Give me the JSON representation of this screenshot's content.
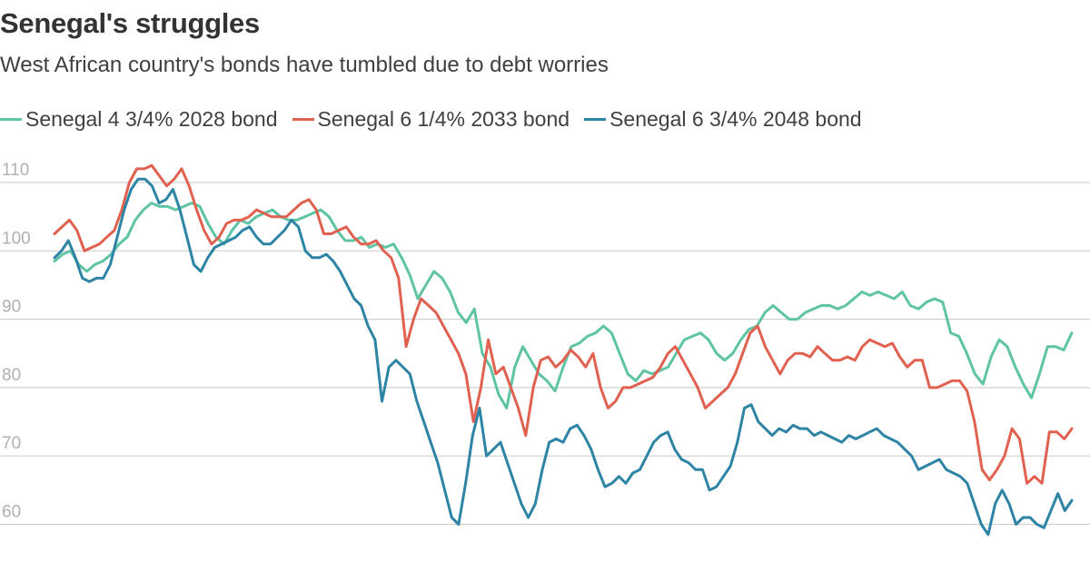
{
  "title": "Senegal's struggles",
  "subtitle": "West African country's bonds have tumbled due to debt worries",
  "chart_data": {
    "type": "line",
    "title": "Senegal's struggles",
    "subtitle": "West African country's bonds have tumbled due to debt worries",
    "xlabel": "",
    "ylabel": "",
    "ylim": [
      50,
      115
    ],
    "yticks": [
      60,
      70,
      80,
      90,
      100,
      110
    ],
    "grid": true,
    "legend_position": "top",
    "series": [
      {
        "name": "Senegal 4 3/4% 2028 bond",
        "color": "#5fc4a3",
        "values": [
          98.5,
          99.5,
          100,
          98,
          97,
          98,
          98.5,
          99.5,
          101,
          102,
          104.5,
          106,
          107,
          106.5,
          106.5,
          106,
          106.5,
          107,
          106.5,
          104,
          102,
          101,
          103,
          104.5,
          104,
          105,
          105.5,
          106,
          105,
          104.5,
          104.5,
          105,
          105.5,
          106,
          105,
          103,
          101.5,
          101.5,
          102,
          100.5,
          101,
          100.5,
          101,
          99,
          96.5,
          93,
          95,
          97,
          96,
          94,
          91,
          89.5,
          91.5,
          85,
          83,
          79,
          77,
          83,
          86,
          84,
          82,
          81,
          79.5,
          83,
          86,
          86.5,
          87.5,
          88,
          89,
          88,
          85,
          82,
          81,
          82.5,
          82,
          82.5,
          83,
          85,
          87,
          87.5,
          88,
          87,
          85,
          84,
          85,
          87,
          88.5,
          89,
          91,
          92,
          91,
          90,
          90,
          91,
          91.5,
          92,
          92,
          91.5,
          92,
          93,
          94,
          93.5,
          94,
          93.5,
          93,
          94,
          92,
          91.5,
          92.5,
          93,
          92.5,
          88,
          87.5,
          85,
          82,
          80.5,
          84.5,
          87,
          86,
          83,
          80.5,
          78.5,
          82,
          86,
          86,
          85.5,
          88
        ]
      },
      {
        "name": "Senegal 6 1/4% 2033 bond",
        "color": "#e06150",
        "values": [
          102.5,
          103.5,
          104.5,
          103,
          100,
          100.5,
          101,
          102,
          103,
          106,
          110,
          112,
          112,
          112.5,
          111,
          109.5,
          110.5,
          112,
          109.5,
          106,
          103,
          101,
          102,
          104,
          104.5,
          104.5,
          105,
          106,
          105.5,
          105,
          105,
          105,
          106,
          107,
          107.5,
          106,
          102.5,
          102.5,
          103,
          103.5,
          102,
          101,
          101,
          101.5,
          100,
          99,
          96,
          86,
          90,
          93,
          92,
          91,
          89,
          87,
          85,
          82,
          75,
          80,
          87,
          82,
          83,
          80,
          77,
          73,
          80,
          84,
          84.5,
          83,
          84,
          85.5,
          84.5,
          83,
          85,
          80,
          77,
          78,
          80,
          80,
          80.5,
          81,
          81.5,
          83,
          85,
          86,
          84,
          82,
          80,
          77,
          78,
          79,
          80,
          82,
          85,
          88,
          89,
          86,
          84,
          82,
          84,
          85,
          85,
          84.5,
          86,
          85,
          84,
          84,
          84.5,
          84,
          86,
          87,
          86.5,
          86,
          86.5,
          84.5,
          83,
          84,
          84,
          80,
          80,
          80.5,
          81,
          81,
          79.5,
          75,
          68,
          66.5,
          68,
          70,
          74,
          72.5,
          66,
          67,
          66,
          73.5,
          73.5,
          72.5,
          74
        ]
      },
      {
        "name": "Senegal 6 3/4% 2048 bond",
        "color": "#2e84a4",
        "values": [
          99,
          100,
          101.5,
          99,
          96,
          95.5,
          96,
          96,
          98,
          102,
          106,
          109,
          110.5,
          110.5,
          109.5,
          107,
          107.5,
          109,
          106,
          102,
          98,
          97,
          99,
          100.5,
          101,
          101.5,
          102,
          103,
          103.5,
          102,
          101,
          101,
          102,
          103,
          104.5,
          103.5,
          100,
          99,
          99,
          99.5,
          98.5,
          97,
          95,
          93,
          92,
          89,
          87,
          78,
          83,
          84,
          83,
          82,
          78,
          75,
          72,
          69,
          65,
          61,
          60,
          66,
          73,
          77,
          70,
          71,
          72,
          69,
          66,
          63,
          61,
          63,
          68,
          72,
          72.5,
          72,
          74,
          74.5,
          73,
          71,
          68,
          65.5,
          66,
          67,
          66,
          67.5,
          68,
          70,
          72,
          73,
          73.5,
          71,
          69.5,
          69,
          68,
          68,
          65,
          65.5,
          67,
          68.5,
          72,
          77,
          77.5,
          75,
          74,
          73,
          74,
          73.5,
          74.5,
          74,
          74,
          73,
          73.5,
          73,
          72.5,
          72,
          73,
          72.5,
          73,
          73.5,
          74,
          73,
          72.5,
          72,
          71,
          70,
          68,
          68.5,
          69,
          69.5,
          68,
          67.5,
          67,
          66,
          63,
          60,
          58.5,
          63,
          65,
          63,
          60,
          61,
          61,
          60,
          59.5,
          62,
          64.5,
          62,
          63.5
        ]
      }
    ]
  }
}
